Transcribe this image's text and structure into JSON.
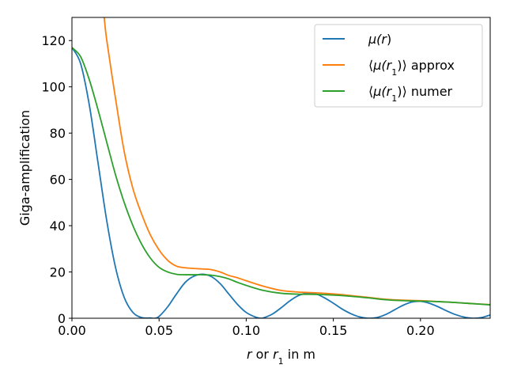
{
  "chart_data": {
    "type": "line",
    "title": "",
    "xlabel_parts": [
      {
        "text": "r",
        "italic": true
      },
      {
        "text": " or ",
        "italic": false
      },
      {
        "text": "r",
        "italic": true
      },
      {
        "text": "1",
        "sub": true
      },
      {
        "text": " in m",
        "italic": false
      }
    ],
    "ylabel": "Giga-amplification",
    "xlim": [
      0.0,
      0.24
    ],
    "ylim": [
      0,
      130
    ],
    "xticks": [
      0.0,
      0.05,
      0.1,
      0.15,
      0.2
    ],
    "xtick_labels": [
      "0.00",
      "0.05",
      "0.10",
      "0.15",
      "0.20"
    ],
    "yticks": [
      0,
      20,
      40,
      60,
      80,
      100,
      120
    ],
    "ytick_labels": [
      "0",
      "20",
      "40",
      "60",
      "80",
      "100",
      "120"
    ],
    "grid": false,
    "legend_position": "top-right",
    "series": [
      {
        "name": "μ(r)",
        "legend_parts": [
          {
            "text": "μ(",
            "italic": true
          },
          {
            "text": "r",
            "italic": true
          },
          {
            "text": ")",
            "italic": false
          }
        ],
        "color": "#1f77b4",
        "x": [
          0.0,
          0.005,
          0.01,
          0.015,
          0.02,
          0.025,
          0.03,
          0.035,
          0.04,
          0.045,
          0.0475,
          0.05,
          0.055,
          0.06,
          0.065,
          0.07,
          0.075,
          0.08,
          0.085,
          0.09,
          0.095,
          0.1,
          0.105,
          0.108,
          0.11,
          0.115,
          0.12,
          0.125,
          0.13,
          0.135,
          0.14,
          0.145,
          0.15,
          0.155,
          0.16,
          0.165,
          0.17,
          0.175,
          0.18,
          0.185,
          0.19,
          0.195,
          0.2,
          0.205,
          0.21,
          0.215,
          0.22,
          0.225,
          0.23,
          0.235,
          0.24
        ],
        "y": [
          117,
          110,
          92,
          67,
          42,
          22,
          9,
          2.5,
          0.3,
          0.1,
          0.0,
          0.8,
          5,
          10.5,
          15.5,
          18.2,
          19,
          18,
          15,
          10.5,
          6,
          2.5,
          0.6,
          0.0,
          0.2,
          1.8,
          4.5,
          7.5,
          9.8,
          10.8,
          10.5,
          8.8,
          6.5,
          4,
          2,
          0.6,
          0.0,
          0.3,
          1.6,
          3.6,
          5.6,
          7,
          7.3,
          6.5,
          5,
          3.2,
          1.6,
          0.5,
          0.0,
          0.3,
          1.4
        ]
      },
      {
        "name": "⟨μ(r1)⟩ approx",
        "legend_parts": [
          {
            "text": "⟨",
            "italic": false
          },
          {
            "text": "μ(",
            "italic": true
          },
          {
            "text": "r",
            "italic": true
          },
          {
            "text": "1",
            "sub": true
          },
          {
            "text": ")⟩ approx",
            "italic": false
          }
        ],
        "color": "#ff7f0e",
        "x": [
          0.0185,
          0.02,
          0.025,
          0.03,
          0.035,
          0.04,
          0.045,
          0.05,
          0.055,
          0.06,
          0.065,
          0.07,
          0.075,
          0.08,
          0.085,
          0.09,
          0.095,
          0.1,
          0.11,
          0.12,
          0.13,
          0.14,
          0.15,
          0.16,
          0.17,
          0.18,
          0.19,
          0.2,
          0.21,
          0.22,
          0.23,
          0.24
        ],
        "y": [
          130,
          120,
          95,
          72,
          56,
          45,
          36,
          29.5,
          25,
          22.5,
          21.8,
          21.5,
          21.3,
          21,
          20,
          18.5,
          17.5,
          16.2,
          13.8,
          12,
          11.3,
          11,
          10.5,
          9.8,
          9,
          8.2,
          7.8,
          7.6,
          7.2,
          6.8,
          6.3,
          5.9
        ]
      },
      {
        "name": "⟨μ(r1)⟩ numer",
        "legend_parts": [
          {
            "text": "⟨",
            "italic": false
          },
          {
            "text": "μ(",
            "italic": true
          },
          {
            "text": "r",
            "italic": true
          },
          {
            "text": "1",
            "sub": true
          },
          {
            "text": ")⟩ numer",
            "italic": false
          }
        ],
        "color": "#2ca02c",
        "x": [
          0.0,
          0.005,
          0.01,
          0.015,
          0.02,
          0.025,
          0.03,
          0.035,
          0.04,
          0.045,
          0.05,
          0.055,
          0.06,
          0.065,
          0.07,
          0.075,
          0.08,
          0.085,
          0.09,
          0.095,
          0.1,
          0.11,
          0.12,
          0.13,
          0.14,
          0.15,
          0.16,
          0.17,
          0.18,
          0.19,
          0.2,
          0.21,
          0.22,
          0.23,
          0.24
        ],
        "y": [
          117,
          113,
          103,
          90,
          76,
          62,
          50,
          40,
          32,
          26,
          22,
          20,
          19,
          18.8,
          18.8,
          18.8,
          18.6,
          18,
          17,
          15.5,
          14.2,
          12,
          10.8,
          10.4,
          10.3,
          10,
          9.5,
          8.8,
          8,
          7.6,
          7.4,
          7.2,
          6.8,
          6.3,
          5.8
        ]
      }
    ]
  }
}
